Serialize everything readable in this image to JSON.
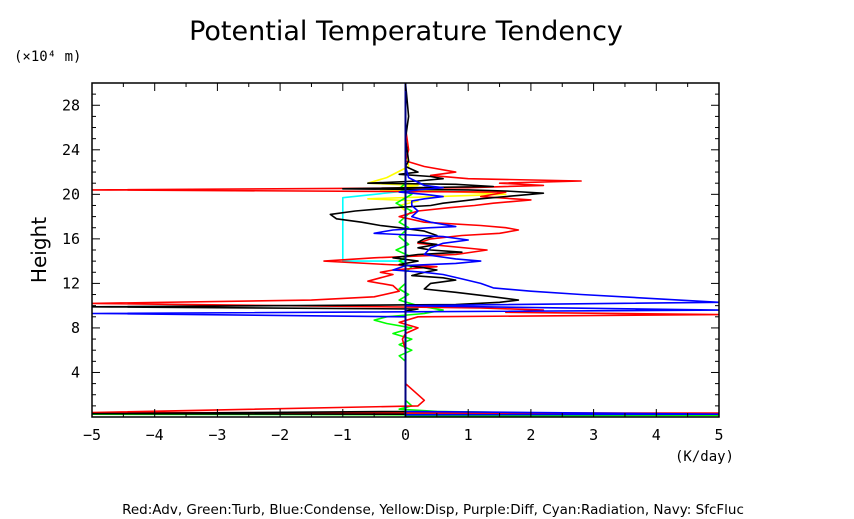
{
  "chart_data": {
    "type": "line",
    "title": "Potential Temperature Tendency",
    "y_unit_label": "(×10⁴ m)",
    "xlabel": "(K/day)",
    "ylabel": "Height",
    "xlim": [
      -5,
      5
    ],
    "ylim": [
      0,
      30
    ],
    "x_ticks": [
      -5,
      -4,
      -3,
      -2,
      -1,
      0,
      1,
      2,
      3,
      4,
      5
    ],
    "x_tick_labels": [
      "-5",
      "-4",
      "-3",
      "-2",
      "-1",
      "0",
      "1",
      "2",
      "3",
      "4",
      "5"
    ],
    "y_ticks": [
      4,
      8,
      12,
      16,
      20,
      24,
      28
    ],
    "y_tick_labels": [
      "4",
      "8",
      "12",
      "16",
      "20",
      "24",
      "28"
    ],
    "grid": false,
    "legend_text": "Red:Adv, Green:Turb, Blue:Condense, Yellow:Disp, Purple:Diff, Cyan:Radiation, Navy: SfcFluc",
    "series": [
      {
        "name": "Yellow",
        "color": "#ffff00",
        "points": [
          [
            0,
            30
          ],
          [
            0,
            25
          ],
          [
            0.05,
            22.5
          ],
          [
            -0.3,
            21.5
          ],
          [
            -0.6,
            21.0
          ],
          [
            0.2,
            20.8
          ],
          [
            -0.4,
            20.4
          ],
          [
            0.9,
            20.2
          ],
          [
            1.6,
            20.0
          ],
          [
            0.5,
            19.8
          ],
          [
            -0.6,
            19.6
          ],
          [
            0.2,
            19.4
          ],
          [
            -0.1,
            19.0
          ],
          [
            0,
            18.5
          ],
          [
            0,
            0
          ]
        ]
      },
      {
        "name": "Cyan",
        "color": "#00ffff",
        "points": [
          [
            0,
            30
          ],
          [
            0,
            20.3
          ],
          [
            -1.0,
            19.7
          ],
          [
            -1.0,
            14.0
          ],
          [
            0,
            14.0
          ],
          [
            0,
            0
          ]
        ]
      },
      {
        "name": "Green",
        "color": "#00ff00",
        "points": [
          [
            0,
            30
          ],
          [
            0,
            21
          ],
          [
            -0.1,
            20.5
          ],
          [
            0.1,
            20.0
          ],
          [
            -0.15,
            19.2
          ],
          [
            0.1,
            18.5
          ],
          [
            -0.1,
            17.5
          ],
          [
            0.05,
            17.0
          ],
          [
            -0.1,
            16.2
          ],
          [
            0.05,
            15.5
          ],
          [
            -0.15,
            15.0
          ],
          [
            0.05,
            14.5
          ],
          [
            -0.1,
            14.0
          ],
          [
            0.1,
            13.5
          ],
          [
            0,
            13.0
          ],
          [
            0,
            12.0
          ],
          [
            -0.1,
            11.5
          ],
          [
            0.05,
            11.0
          ],
          [
            -0.1,
            10.5
          ],
          [
            0.2,
            10.0
          ],
          [
            0.6,
            9.6
          ],
          [
            0.3,
            9.3
          ],
          [
            -0.3,
            9.0
          ],
          [
            -0.5,
            8.7
          ],
          [
            -0.3,
            8.4
          ],
          [
            0.1,
            8.0
          ],
          [
            -0.2,
            7.5
          ],
          [
            0.1,
            7.0
          ],
          [
            -0.1,
            6.5
          ],
          [
            0.1,
            6.0
          ],
          [
            -0.1,
            5.5
          ],
          [
            0,
            5.0
          ],
          [
            0,
            1.5
          ],
          [
            0.1,
            1.0
          ],
          [
            -0.1,
            0.7
          ],
          [
            0.5,
            0.5
          ],
          [
            2.2,
            0.35
          ],
          [
            0.1,
            0.3
          ],
          [
            -5,
            0.25
          ],
          [
            0,
            0.2
          ],
          [
            5,
            0.15
          ],
          [
            0,
            0.1
          ]
        ]
      },
      {
        "name": "Red",
        "color": "#ff0000",
        "points": [
          [
            0,
            30
          ],
          [
            0,
            26
          ],
          [
            0.05,
            24
          ],
          [
            0,
            23
          ],
          [
            0.3,
            22.5
          ],
          [
            0.8,
            22.0
          ],
          [
            0.4,
            21.7
          ],
          [
            1.0,
            21.4
          ],
          [
            2.8,
            21.2
          ],
          [
            1.5,
            21.0
          ],
          [
            2.2,
            20.8
          ],
          [
            1.0,
            20.6
          ],
          [
            -5.0,
            20.4
          ],
          [
            1.6,
            20.2
          ],
          [
            1.2,
            19.8
          ],
          [
            2.0,
            19.5
          ],
          [
            1.4,
            19.2
          ],
          [
            1.1,
            19.0
          ],
          [
            0.7,
            18.8
          ],
          [
            0.2,
            18.5
          ],
          [
            -0.1,
            18.0
          ],
          [
            0.3,
            17.5
          ],
          [
            1.2,
            17.2
          ],
          [
            1.6,
            17.0
          ],
          [
            1.8,
            16.8
          ],
          [
            1.5,
            16.5
          ],
          [
            0.9,
            16.3
          ],
          [
            0.4,
            16.0
          ],
          [
            0.2,
            15.6
          ],
          [
            1.3,
            15.0
          ],
          [
            0.8,
            14.6
          ],
          [
            -0.5,
            14.3
          ],
          [
            -1.3,
            14.0
          ],
          [
            -0.3,
            13.7
          ],
          [
            0.5,
            13.5
          ],
          [
            -0.2,
            13.2
          ],
          [
            -0.4,
            13.0
          ],
          [
            -0.2,
            12.8
          ],
          [
            -0.4,
            12.5
          ],
          [
            -0.6,
            12.2
          ],
          [
            -0.2,
            11.8
          ],
          [
            -0.1,
            11.3
          ],
          [
            -0.5,
            10.8
          ],
          [
            -1.5,
            10.5
          ],
          [
            -5.0,
            10.2
          ],
          [
            1.2,
            9.8
          ],
          [
            2.2,
            9.6
          ],
          [
            1.6,
            9.4
          ],
          [
            5.0,
            9.2
          ],
          [
            0.2,
            9.0
          ],
          [
            -0.1,
            8.5
          ],
          [
            0.2,
            8.0
          ],
          [
            0,
            7.5
          ],
          [
            -0.05,
            7.0
          ],
          [
            0,
            6.0
          ],
          [
            0,
            4.0
          ],
          [
            0,
            3.0
          ],
          [
            0.1,
            2.5
          ],
          [
            0.2,
            2.0
          ],
          [
            0.3,
            1.5
          ],
          [
            0.2,
            1.0
          ],
          [
            -5,
            0.4
          ],
          [
            5,
            0.35
          ],
          [
            0,
            0.3
          ]
        ]
      },
      {
        "name": "Black",
        "color": "#000000",
        "points": [
          [
            0,
            30
          ],
          [
            0.05,
            27
          ],
          [
            0,
            25
          ],
          [
            0.05,
            23
          ],
          [
            0,
            22.5
          ],
          [
            0.2,
            22.0
          ],
          [
            -0.1,
            21.8
          ],
          [
            0.4,
            21.6
          ],
          [
            0.6,
            21.4
          ],
          [
            0.2,
            21.2
          ],
          [
            -0.6,
            21.0
          ],
          [
            0.8,
            20.9
          ],
          [
            1.4,
            20.7
          ],
          [
            -1.0,
            20.5
          ],
          [
            1.0,
            20.4
          ],
          [
            1.6,
            20.3
          ],
          [
            2.2,
            20.1
          ],
          [
            1.8,
            19.9
          ],
          [
            1.2,
            19.6
          ],
          [
            0.6,
            19.2
          ],
          [
            0.4,
            19.0
          ],
          [
            -0.2,
            18.8
          ],
          [
            -0.4,
            18.7
          ],
          [
            -0.8,
            18.5
          ],
          [
            -1.2,
            18.2
          ],
          [
            -1.1,
            17.8
          ],
          [
            -0.7,
            17.5
          ],
          [
            -0.4,
            17.2
          ],
          [
            -0.1,
            17.0
          ],
          [
            0.3,
            16.7
          ],
          [
            0.5,
            16.3
          ],
          [
            0.3,
            16.0
          ],
          [
            0.2,
            15.7
          ],
          [
            0.5,
            15.5
          ],
          [
            0.2,
            15.2
          ],
          [
            0.4,
            15.0
          ],
          [
            0.9,
            14.8
          ],
          [
            0.2,
            14.6
          ],
          [
            -0.2,
            14.3
          ],
          [
            0.2,
            14.0
          ],
          [
            -0.1,
            13.7
          ],
          [
            0.3,
            13.4
          ],
          [
            0.5,
            13.2
          ],
          [
            0.3,
            13.0
          ],
          [
            0.1,
            12.7
          ],
          [
            0.6,
            12.5
          ],
          [
            0.8,
            12.3
          ],
          [
            0.4,
            12.0
          ],
          [
            0.3,
            11.5
          ],
          [
            0.8,
            11.2
          ],
          [
            1.4,
            10.8
          ],
          [
            1.8,
            10.5
          ],
          [
            1.5,
            10.3
          ],
          [
            0.8,
            10.1
          ],
          [
            -5.0,
            9.9
          ],
          [
            0.2,
            9.7
          ],
          [
            0,
            9.5
          ],
          [
            0,
            0.5
          ],
          [
            -5,
            0.3
          ],
          [
            0,
            0.25
          ]
        ]
      },
      {
        "name": "Blue",
        "color": "#0000ff",
        "points": [
          [
            0,
            30
          ],
          [
            0,
            22.5
          ],
          [
            0.05,
            21.5
          ],
          [
            0.3,
            20.8
          ],
          [
            0.6,
            20.6
          ],
          [
            0.2,
            20.4
          ],
          [
            -0.1,
            20.2
          ],
          [
            0.3,
            20.0
          ],
          [
            0.6,
            19.8
          ],
          [
            0.3,
            19.6
          ],
          [
            0.1,
            19.4
          ],
          [
            0.1,
            19.0
          ],
          [
            0.2,
            18.5
          ],
          [
            0.1,
            18.0
          ],
          [
            0.4,
            17.5
          ],
          [
            0.8,
            17.1
          ],
          [
            0.4,
            17.0
          ],
          [
            -0.2,
            16.8
          ],
          [
            -0.5,
            16.5
          ],
          [
            0.6,
            16.2
          ],
          [
            1.0,
            15.9
          ],
          [
            0.6,
            15.6
          ],
          [
            0.4,
            15.2
          ],
          [
            0.3,
            14.6
          ],
          [
            0.8,
            14.2
          ],
          [
            1.2,
            14.0
          ],
          [
            0.8,
            13.8
          ],
          [
            0,
            13.6
          ],
          [
            -0.2,
            13.2
          ],
          [
            0.3,
            13.0
          ],
          [
            0.6,
            12.8
          ],
          [
            0.9,
            12.4
          ],
          [
            1.2,
            12.0
          ],
          [
            1.4,
            11.6
          ],
          [
            2.0,
            11.3
          ],
          [
            2.8,
            11.0
          ],
          [
            5.0,
            10.3
          ],
          [
            0,
            10.0
          ],
          [
            5.0,
            9.6
          ],
          [
            -5,
            9.3
          ],
          [
            0,
            9.0
          ],
          [
            0,
            1.5
          ],
          [
            0,
            0.5
          ],
          [
            5,
            0.25
          ],
          [
            0,
            0.2
          ]
        ]
      },
      {
        "name": "Navy",
        "color": "#000080",
        "points": [
          [
            0,
            30
          ],
          [
            0,
            0
          ]
        ]
      }
    ]
  }
}
